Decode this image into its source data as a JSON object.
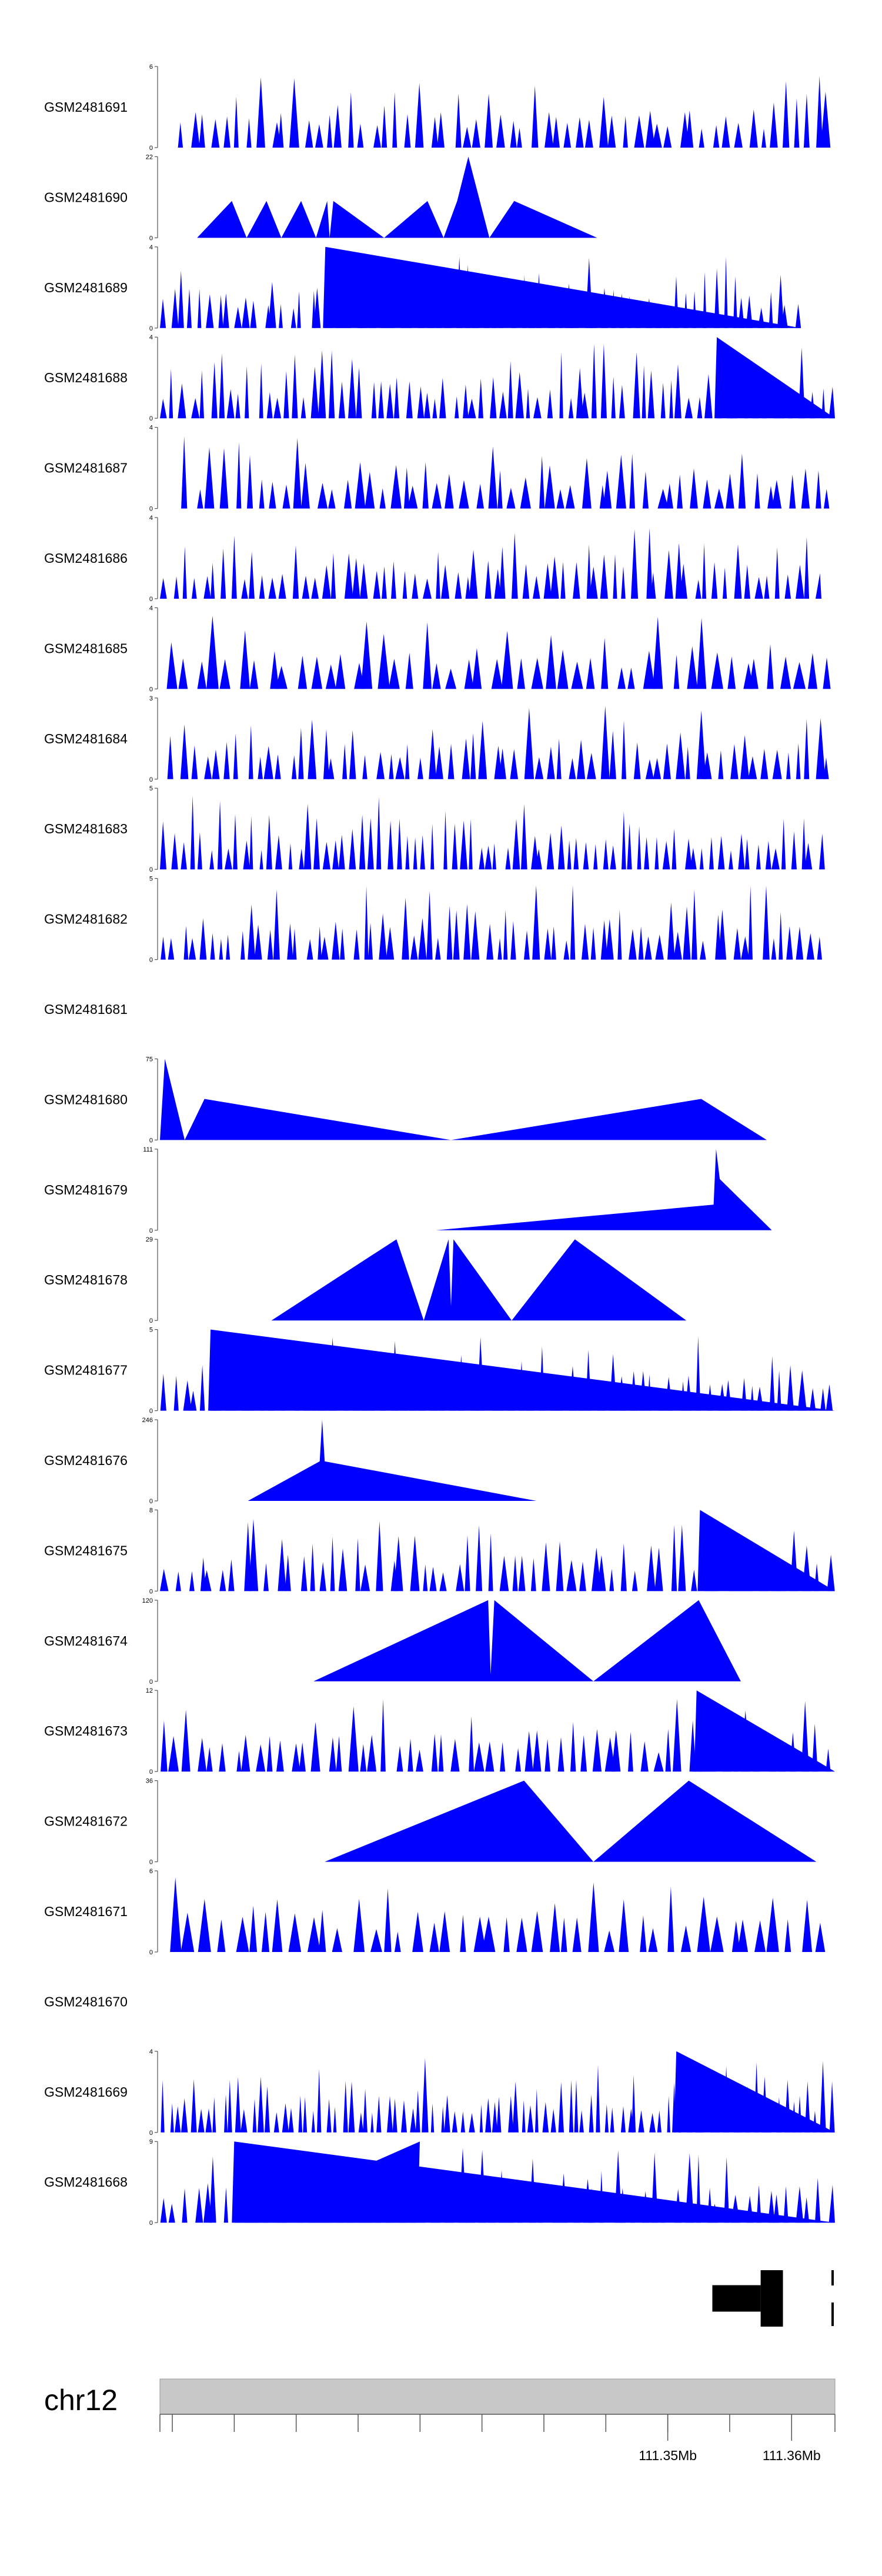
{
  "colors": {
    "signal": "#0000ff",
    "axis": "#555555",
    "gene": "#000000",
    "ideogram": "#c8c8c8"
  },
  "chart_data": {
    "type": "area",
    "x_unit": "bp",
    "xlim": [
      111309000,
      111363500
    ],
    "tracks": [
      {
        "name": "GSM2481691",
        "ymax": 6,
        "ytick": "6",
        "seed": 11,
        "n": 58,
        "mode": "spiky",
        "start": 0.025,
        "end": 1.0
      },
      {
        "name": "GSM2481690",
        "ymax": 22,
        "ytick": "22",
        "mode": "points",
        "points": [
          [
            111312000,
            0
          ],
          [
            111314800,
            10
          ],
          [
            111316000,
            0
          ],
          [
            111317600,
            10
          ],
          [
            111318800,
            0
          ],
          [
            111320400,
            10
          ],
          [
            111321600,
            0
          ],
          [
            111322500,
            10
          ],
          [
            111322700,
            0
          ],
          [
            111323000,
            10
          ],
          [
            111327100,
            0
          ],
          [
            111330600,
            10
          ],
          [
            111331900,
            0
          ],
          [
            111333000,
            10
          ],
          [
            111333900,
            22
          ],
          [
            111335600,
            0
          ],
          [
            111337600,
            10
          ],
          [
            111344300,
            0
          ]
        ]
      },
      {
        "name": "GSM2481689",
        "ymax": 4,
        "ytick": "4",
        "seed": 23,
        "n": 70,
        "mode": "spiky",
        "start": 0.0,
        "end": 0.95,
        "peaks": [
          [
            0.245,
            4
          ]
        ]
      },
      {
        "name": "GSM2481688",
        "ymax": 4,
        "ytick": "4",
        "seed": 31,
        "n": 72,
        "mode": "spiky",
        "start": 0.0,
        "end": 1.0,
        "peaks": [
          [
            0.825,
            4
          ]
        ]
      },
      {
        "name": "GSM2481687",
        "ymax": 4,
        "ytick": "4",
        "seed": 41,
        "n": 54,
        "mode": "spiky",
        "start": 0.03,
        "end": 1.0
      },
      {
        "name": "GSM2481686",
        "ymax": 4,
        "ytick": "4",
        "seed": 53,
        "n": 66,
        "mode": "spiky",
        "start": 0.0,
        "end": 0.98
      },
      {
        "name": "GSM2481685",
        "ymax": 4,
        "ytick": "4",
        "seed": 61,
        "n": 48,
        "mode": "spiky",
        "start": 0.01,
        "end": 1.0
      },
      {
        "name": "GSM2481684",
        "ymax": 3,
        "ytick": "3",
        "seed": 71,
        "n": 62,
        "mode": "spiky",
        "start": 0.01,
        "end": 1.0
      },
      {
        "name": "GSM2481683",
        "ymax": 5,
        "ytick": "5",
        "seed": 83,
        "n": 74,
        "mode": "spiky",
        "start": 0.0,
        "end": 0.985
      },
      {
        "name": "GSM2481682",
        "ymax": 5,
        "ytick": "5",
        "seed": 97,
        "n": 70,
        "mode": "spiky",
        "start": 0.0,
        "end": 0.985
      },
      {
        "name": "GSM2481681",
        "ymax": null,
        "ytick": "",
        "mode": "empty"
      },
      {
        "name": "GSM2481680",
        "ymax": 75,
        "ytick": "75",
        "mode": "points",
        "points": [
          [
            111309000,
            0
          ],
          [
            111309400,
            75
          ],
          [
            111311000,
            0
          ],
          [
            111312600,
            38
          ],
          [
            111332500,
            0
          ],
          [
            111352700,
            38
          ],
          [
            111358000,
            0
          ]
        ]
      },
      {
        "name": "GSM2481679",
        "ymax": 111,
        "ytick": "111",
        "mode": "points",
        "points": [
          [
            111331300,
            0
          ],
          [
            111353700,
            35
          ],
          [
            111353900,
            111
          ],
          [
            111354200,
            70
          ],
          [
            111358400,
            0
          ]
        ]
      },
      {
        "name": "GSM2481678",
        "ymax": 29,
        "ytick": "29",
        "mode": "points",
        "points": [
          [
            111318000,
            0
          ],
          [
            111328100,
            29
          ],
          [
            111330300,
            0
          ],
          [
            111332300,
            29
          ],
          [
            111332500,
            5
          ],
          [
            111332700,
            29
          ],
          [
            111337400,
            0
          ],
          [
            111342500,
            29
          ],
          [
            111351500,
            0
          ]
        ]
      },
      {
        "name": "GSM2481677",
        "ymax": 5,
        "ytick": "5",
        "seed": 101,
        "n": 68,
        "mode": "spiky",
        "start": 0.0,
        "end": 1.0,
        "peaks": [
          [
            0.075,
            5
          ],
          [
            0.095,
            4
          ]
        ]
      },
      {
        "name": "GSM2481676",
        "ymax": 246,
        "ytick": "246",
        "mode": "points",
        "points": [
          [
            111316100,
            0
          ],
          [
            111321900,
            120
          ],
          [
            111322100,
            246
          ],
          [
            111322300,
            120
          ],
          [
            111339400,
            0
          ]
        ]
      },
      {
        "name": "GSM2481675",
        "ymax": 8,
        "ytick": "8",
        "seed": 113,
        "n": 60,
        "mode": "spiky",
        "start": 0.0,
        "end": 1.0,
        "peaks": [
          [
            0.8,
            8
          ]
        ]
      },
      {
        "name": "GSM2481674",
        "ymax": 120,
        "ytick": "120",
        "mode": "points",
        "points": [
          [
            111321400,
            0
          ],
          [
            111335500,
            120
          ],
          [
            111335700,
            10
          ],
          [
            111336000,
            120
          ],
          [
            111344000,
            0
          ],
          [
            111352500,
            120
          ],
          [
            111355900,
            0
          ]
        ]
      },
      {
        "name": "GSM2481673",
        "ymax": 12,
        "ytick": "12",
        "seed": 127,
        "n": 58,
        "mode": "spiky",
        "start": 0.0,
        "end": 1.0,
        "peaks": [
          [
            0.795,
            12
          ],
          [
            0.815,
            8
          ]
        ]
      },
      {
        "name": "GSM2481672",
        "ymax": 36,
        "ytick": "36",
        "mode": "points",
        "points": [
          [
            111322300,
            0
          ],
          [
            111338400,
            36
          ],
          [
            111344000,
            0
          ],
          [
            111351700,
            36
          ],
          [
            111362000,
            0
          ]
        ]
      },
      {
        "name": "GSM2481671",
        "ymax": 6,
        "ytick": "6",
        "seed": 139,
        "n": 44,
        "mode": "spiky",
        "start": 0.015,
        "end": 0.99
      },
      {
        "name": "GSM2481670",
        "ymax": null,
        "ytick": "",
        "mode": "empty"
      },
      {
        "name": "GSM2481669",
        "ymax": 4,
        "ytick": "4",
        "seed": 149,
        "n": 90,
        "mode": "spiky",
        "start": 0.0,
        "end": 1.0,
        "peaks": [
          [
            0.765,
            4
          ],
          [
            0.775,
            3.6
          ]
        ]
      },
      {
        "name": "GSM2481668",
        "ymax": 9,
        "ytick": "9",
        "seed": 157,
        "n": 66,
        "mode": "spiky",
        "start": 0.0,
        "end": 1.0,
        "peaks": [
          [
            0.11,
            9
          ],
          [
            0.385,
            9
          ]
        ]
      }
    ],
    "gene_model": {
      "exons": [
        [
          111353600,
          111357500
        ],
        [
          111357500,
          111359300
        ]
      ]
    },
    "chromosome": "chr12",
    "axis_ticks": [
      111310000,
      111315000,
      111320000,
      111325000,
      111330000,
      111335000,
      111340000,
      111345000,
      111350000,
      111355000,
      111360000
    ],
    "axis_labels": [
      {
        "pos": 111350000,
        "label": "111.35Mb"
      },
      {
        "pos": 111360000,
        "label": "111.36Mb"
      }
    ]
  }
}
